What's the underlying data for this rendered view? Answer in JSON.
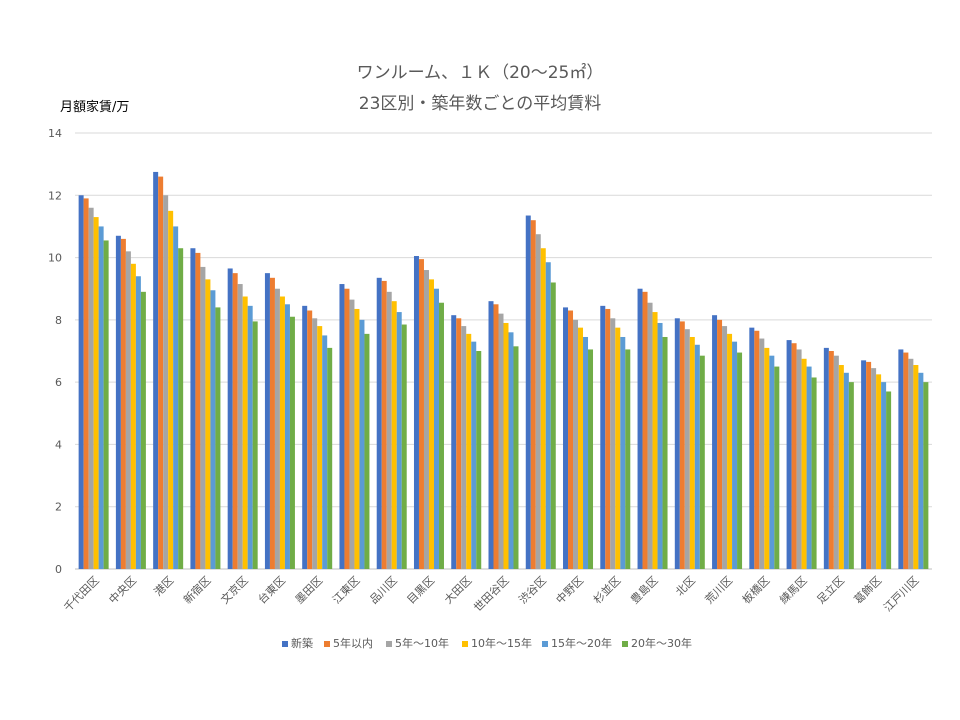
{
  "chart_data": {
    "type": "bar",
    "title": "ワンルーム、１Ｋ（20～25㎡）",
    "subtitle": "23区別・築年数ごとの平均賃料",
    "ylabel": "月額家賃/万",
    "xlabel": "",
    "ylim": [
      0,
      14
    ],
    "yticks": [
      0,
      2,
      4,
      6,
      8,
      10,
      12,
      14
    ],
    "grid": true,
    "legend_position": "bottom",
    "categories": [
      "千代田区",
      "中央区",
      "港区",
      "新宿区",
      "文京区",
      "台東区",
      "墨田区",
      "江東区",
      "品川区",
      "目黒区",
      "大田区",
      "世田谷区",
      "渋谷区",
      "中野区",
      "杉並区",
      "豊島区",
      "北区",
      "荒川区",
      "板橋区",
      "練馬区",
      "足立区",
      "葛飾区",
      "江戸川区"
    ],
    "series": [
      {
        "name": "新築",
        "color": "#4472C4",
        "values": [
          12.0,
          10.7,
          12.75,
          10.3,
          9.65,
          9.5,
          8.45,
          9.15,
          9.35,
          10.05,
          8.15,
          8.6,
          11.35,
          8.4,
          8.45,
          9.0,
          8.05,
          8.15,
          7.75,
          7.35,
          7.1,
          6.7,
          7.05
        ]
      },
      {
        "name": "5年以内",
        "color": "#ED7D31",
        "values": [
          11.9,
          10.6,
          12.6,
          10.15,
          9.5,
          9.35,
          8.3,
          9.0,
          9.25,
          9.95,
          8.05,
          8.5,
          11.2,
          8.3,
          8.35,
          8.9,
          7.95,
          8.0,
          7.65,
          7.25,
          7.0,
          6.65,
          6.95
        ]
      },
      {
        "name": "5年～10年",
        "color": "#A5A5A5",
        "values": [
          11.6,
          10.2,
          12.0,
          9.7,
          9.15,
          9.0,
          8.05,
          8.65,
          8.9,
          9.6,
          7.8,
          8.2,
          10.75,
          8.0,
          8.05,
          8.55,
          7.7,
          7.8,
          7.4,
          7.05,
          6.85,
          6.45,
          6.75
        ]
      },
      {
        "name": "10年～15年",
        "color": "#FFC000",
        "values": [
          11.3,
          9.8,
          11.5,
          9.3,
          8.75,
          8.75,
          7.8,
          8.35,
          8.6,
          9.3,
          7.55,
          7.9,
          10.3,
          7.75,
          7.75,
          8.25,
          7.45,
          7.55,
          7.1,
          6.75,
          6.55,
          6.25,
          6.55
        ]
      },
      {
        "name": "15年～20年",
        "color": "#5B9BD5",
        "values": [
          11.0,
          9.4,
          11.0,
          8.95,
          8.45,
          8.5,
          7.5,
          8.0,
          8.25,
          9.0,
          7.3,
          7.6,
          9.85,
          7.45,
          7.45,
          7.9,
          7.2,
          7.3,
          6.85,
          6.5,
          6.3,
          6.0,
          6.3
        ]
      },
      {
        "name": "20年～30年",
        "color": "#70AD47",
        "values": [
          10.55,
          8.9,
          10.3,
          8.4,
          7.95,
          8.1,
          7.1,
          7.55,
          7.85,
          8.55,
          7.0,
          7.15,
          9.2,
          7.05,
          7.05,
          7.45,
          6.85,
          6.95,
          6.5,
          6.15,
          6.0,
          5.7,
          6.0
        ]
      }
    ]
  }
}
